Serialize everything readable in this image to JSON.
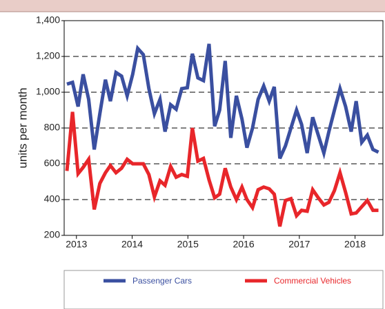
{
  "chart_data": {
    "type": "line",
    "y_label": "units per month",
    "x": [
      2012.83,
      2012.93,
      2013.03,
      2013.12,
      2013.22,
      2013.32,
      2013.42,
      2013.52,
      2013.61,
      2013.71,
      2013.81,
      2013.91,
      2014.01,
      2014.1,
      2014.2,
      2014.3,
      2014.4,
      2014.5,
      2014.59,
      2014.69,
      2014.79,
      2014.89,
      2014.99,
      2015.08,
      2015.18,
      2015.28,
      2015.38,
      2015.48,
      2015.57,
      2015.67,
      2015.77,
      2015.87,
      2015.97,
      2016.06,
      2016.16,
      2016.26,
      2016.36,
      2016.46,
      2016.55,
      2016.65,
      2016.75,
      2016.85,
      2016.95,
      2017.04,
      2017.14,
      2017.24,
      2017.34,
      2017.44,
      2017.53,
      2017.63,
      2017.73,
      2017.83,
      2017.93,
      2018.02,
      2018.12,
      2018.22,
      2018.32,
      2018.42
    ],
    "series": [
      {
        "name": "Passenger Cars",
        "color": "#3a4fa0",
        "values": [
          1045,
          1055,
          920,
          1100,
          960,
          680,
          880,
          1070,
          950,
          1110,
          1090,
          980,
          1100,
          1245,
          1210,
          1020,
          880,
          960,
          780,
          930,
          905,
          1020,
          1025,
          1215,
          1080,
          1065,
          1270,
          810,
          900,
          1175,
          745,
          980,
          850,
          690,
          800,
          960,
          1035,
          950,
          1030,
          630,
          700,
          800,
          900,
          820,
          660,
          860,
          760,
          660,
          780,
          900,
          1020,
          920,
          780,
          950,
          720,
          760,
          680,
          665
        ]
      },
      {
        "name": "Commercial Vehicles",
        "color": "#e8262a",
        "values": [
          560,
          890,
          545,
          580,
          625,
          345,
          490,
          550,
          590,
          550,
          575,
          625,
          600,
          600,
          600,
          540,
          415,
          505,
          480,
          585,
          525,
          540,
          530,
          800,
          615,
          630,
          510,
          410,
          430,
          575,
          470,
          400,
          470,
          400,
          355,
          455,
          470,
          460,
          430,
          250,
          395,
          405,
          310,
          340,
          335,
          455,
          410,
          370,
          385,
          450,
          550,
          440,
          320,
          325,
          360,
          395,
          340,
          340
        ]
      }
    ],
    "xlim": [
      2012.78,
      2018.5
    ],
    "xticks": [
      2013,
      2014,
      2015,
      2016,
      2017,
      2018
    ],
    "ylim": [
      200,
      1400
    ],
    "yticks": [
      200,
      400,
      600,
      800,
      {
        "value": 1000,
        "label": "1,000"
      },
      {
        "value": 1200,
        "label": "1,200"
      },
      {
        "value": 1400,
        "label": "1,400"
      }
    ],
    "grid": true
  }
}
